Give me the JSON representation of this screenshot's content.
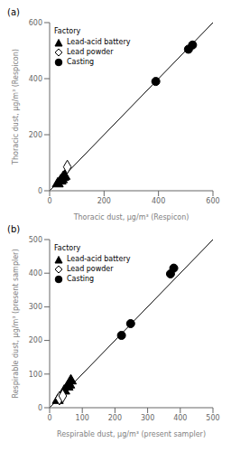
{
  "chart_data": [
    {
      "type": "scatter",
      "title": "(a)",
      "x_label": "Thoracic dust, μg/m³ (Respicon)",
      "y_label": "Thoracic dust, μg/m³ (Respicon)",
      "xlim": [
        0,
        600
      ],
      "ylim": [
        0,
        600
      ],
      "xticks": [
        0,
        200,
        400,
        600
      ],
      "yticks": [
        0,
        200,
        400,
        600
      ],
      "grid": false,
      "legend": "upper left",
      "legend_title": "Factory",
      "reference_line": {
        "x": [
          0,
          600
        ],
        "y": [
          0,
          600
        ],
        "color": "#000000"
      },
      "series": [
        {
          "name": "Lead-acid battery",
          "marker": "triangle",
          "color": "#000000",
          "x": [
            30,
            40,
            45,
            50,
            55
          ],
          "y": [
            25,
            35,
            40,
            48,
            52
          ]
        },
        {
          "name": "Lead powder",
          "marker": "diamond",
          "color": "#ffffff",
          "x": [
            65
          ],
          "y": [
            85
          ]
        },
        {
          "name": "Casting",
          "marker": "circle",
          "color": "#000000",
          "x": [
            390,
            510,
            525
          ],
          "y": [
            390,
            505,
            520
          ]
        }
      ]
    },
    {
      "type": "scatter",
      "title": "(b)",
      "x_label": "Respirable dust, μg/m³ (present sampler)",
      "y_label": "Respirable dust, μg/m³ (present sampler)",
      "xlim": [
        0,
        500
      ],
      "ylim": [
        0,
        500
      ],
      "xticks": [
        0,
        100,
        200,
        300,
        400,
        500
      ],
      "yticks": [
        0,
        100,
        200,
        300,
        400,
        500
      ],
      "grid": false,
      "legend": "upper left",
      "legend_title": "Factory",
      "reference_line": {
        "x": [
          0,
          500
        ],
        "y": [
          0,
          500
        ],
        "color": "#000000"
      },
      "series": [
        {
          "name": "Lead-acid battery",
          "marker": "triangle",
          "color": "#000000",
          "x": [
            25,
            45,
            55,
            60,
            65
          ],
          "y": [
            22,
            50,
            62,
            68,
            80
          ]
        },
        {
          "name": "Lead powder",
          "marker": "diamond",
          "color": "#ffffff",
          "x": [
            30,
            40
          ],
          "y": [
            28,
            35
          ]
        },
        {
          "name": "Casting",
          "marker": "circle",
          "color": "#000000",
          "x": [
            220,
            248,
            370,
            380
          ],
          "y": [
            215,
            250,
            398,
            415
          ]
        }
      ]
    }
  ]
}
